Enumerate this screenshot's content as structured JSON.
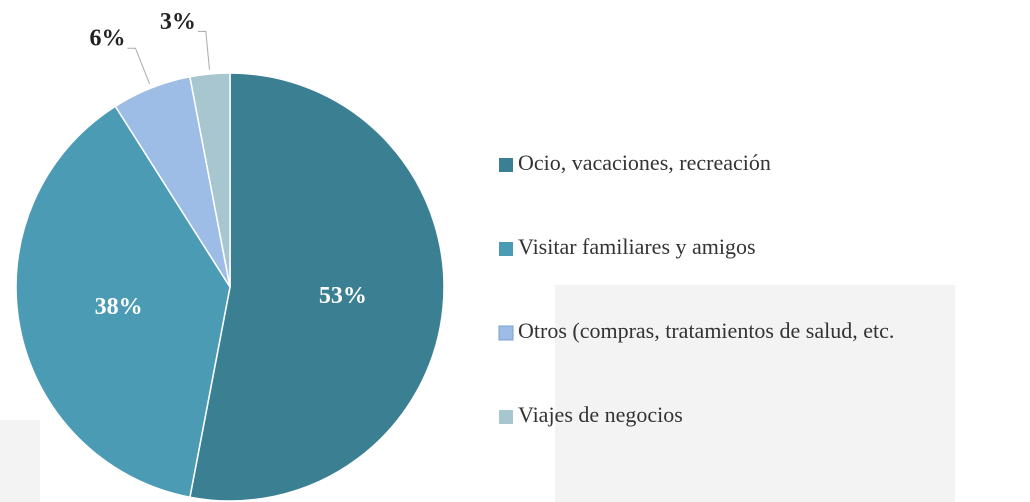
{
  "chart_data": {
    "type": "pie",
    "categories": [
      "Ocio, vacaciones, recreación",
      "Visitar familiares y amigos",
      "Otros (compras, tratamientos de salud, etc.",
      "Viajes de negocios"
    ],
    "values": [
      53,
      38,
      6,
      3
    ],
    "value_labels": [
      "53%",
      "38%",
      "6%",
      "3%"
    ],
    "colors": [
      "#3b7f93",
      "#4b9bb5",
      "#9dbde6",
      "#a7c6d0"
    ]
  }
}
